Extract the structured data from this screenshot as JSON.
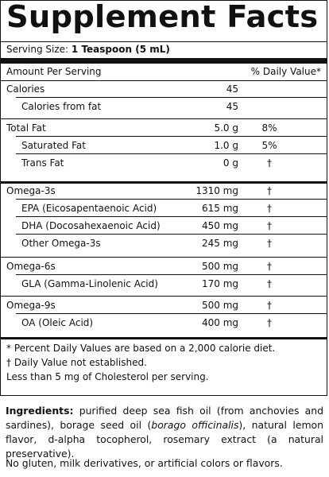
{
  "title": "Supplement Facts",
  "serving": {
    "label": "Serving Size:",
    "value": "1 Teaspoon (5 mL)"
  },
  "header": {
    "amount": "Amount Per Serving",
    "dv": "% Daily Value*"
  },
  "rows": [
    {
      "name": "Calories",
      "amount": "45",
      "dv": "",
      "indent": false
    },
    {
      "name": "Calories from fat",
      "amount": "45",
      "dv": "",
      "indent": true
    },
    {
      "name": "Total Fat",
      "amount": "5.0 g",
      "dv": "8%",
      "indent": false
    },
    {
      "name": "Saturated Fat",
      "amount": "1.0 g",
      "dv": "5%",
      "indent": true
    },
    {
      "name": "Trans Fat",
      "amount": "0 g",
      "dv": "†",
      "indent": true
    },
    {
      "name": "Omega-3s",
      "amount": "1310 mg",
      "dv": "†",
      "indent": false
    },
    {
      "name": "EPA (Eicosapentaenoic Acid)",
      "amount": "615 mg",
      "dv": "†",
      "indent": true
    },
    {
      "name": "DHA (Docosahexaenoic Acid)",
      "amount": "450 mg",
      "dv": "†",
      "indent": true
    },
    {
      "name": "Other Omega-3s",
      "amount": "245 mg",
      "dv": "†",
      "indent": true
    },
    {
      "name": "Omega-6s",
      "amount": "500 mg",
      "dv": "†",
      "indent": false
    },
    {
      "name": "GLA (Gamma-Linolenic Acid)",
      "amount": "170 mg",
      "dv": "†",
      "indent": true
    },
    {
      "name": "Omega-9s",
      "amount": "500 mg",
      "dv": "†",
      "indent": false
    },
    {
      "name": "OA (Oleic Acid)",
      "amount": "400 mg",
      "dv": "†",
      "indent": true
    }
  ],
  "footnotes": [
    "*  Percent Daily Values are based on a 2,000 calorie diet.",
    "†  Daily Value not established.",
    "Less than 5 mg of Cholesterol per serving."
  ],
  "ingredients": {
    "label": "Ingredients:",
    "text_1": " purified deep sea fish oil (from anchovies and sardines), borage seed oil (",
    "italic": "borago officinalis",
    "text_2": "), natural lemon flavor, d-alpha tocopherol, rosemary extract (a natural preservative)."
  },
  "free_from": "No gluten, milk derivatives, or artificial colors or flavors."
}
